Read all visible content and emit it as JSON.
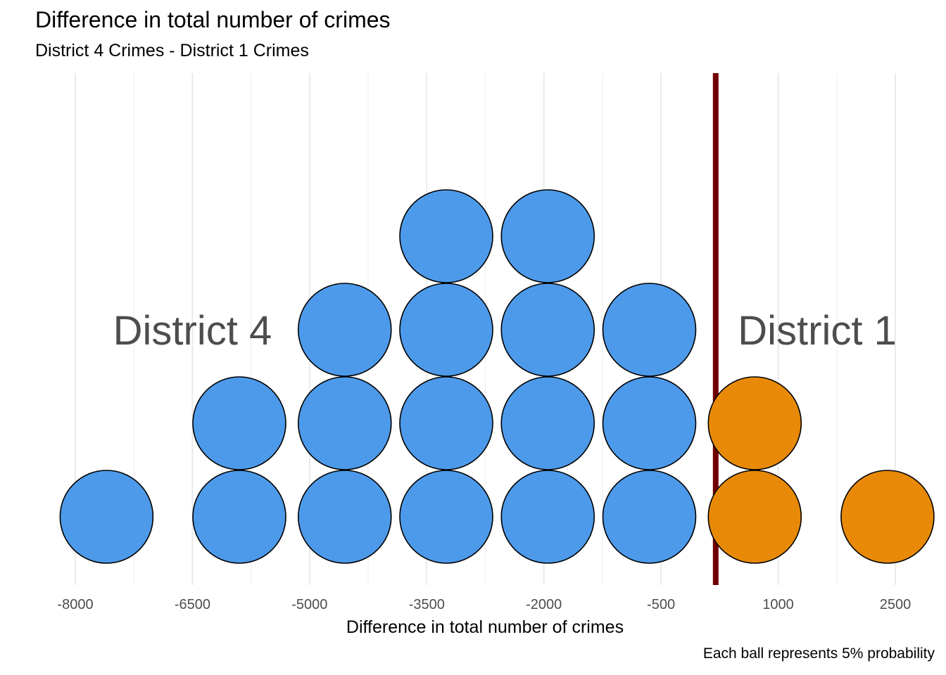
{
  "chart_data": {
    "type": "dotplot",
    "title": "Difference in total number of crimes",
    "subtitle": "District 4 Crimes - District 1 Crimes",
    "xlabel": "Difference in total number of crimes",
    "caption": "Each ball represents 5% probability",
    "xlim": [
      -8100,
      2800
    ],
    "x_ticks": [
      -8000,
      -6500,
      -5000,
      -3500,
      -2000,
      -500,
      1000,
      2500
    ],
    "x_tick_labels": [
      "-8000",
      "-6500",
      "-5000",
      "-3500",
      "-2000",
      "-500",
      "1000",
      "2500"
    ],
    "grid": "vertical",
    "reference_line": {
      "x": 200,
      "color": "#700000"
    },
    "region_labels": [
      {
        "text": "District 4",
        "x": -6500
      },
      {
        "text": "District 1",
        "x": 1500
      }
    ],
    "groups": [
      {
        "name": "District 4",
        "color": "#4e9aea"
      },
      {
        "name": "District 1",
        "color": "#e88a08"
      }
    ],
    "balls": [
      {
        "x": -7600,
        "stack": 0,
        "group": 0
      },
      {
        "x": -5900,
        "stack": 0,
        "group": 0
      },
      {
        "x": -5900,
        "stack": 1,
        "group": 0
      },
      {
        "x": -4550,
        "stack": 0,
        "group": 0
      },
      {
        "x": -4550,
        "stack": 1,
        "group": 0
      },
      {
        "x": -4550,
        "stack": 2,
        "group": 0
      },
      {
        "x": -3250,
        "stack": 0,
        "group": 0
      },
      {
        "x": -3250,
        "stack": 1,
        "group": 0
      },
      {
        "x": -3250,
        "stack": 2,
        "group": 0
      },
      {
        "x": -3250,
        "stack": 3,
        "group": 0
      },
      {
        "x": -1950,
        "stack": 0,
        "group": 0
      },
      {
        "x": -1950,
        "stack": 1,
        "group": 0
      },
      {
        "x": -1950,
        "stack": 2,
        "group": 0
      },
      {
        "x": -1950,
        "stack": 3,
        "group": 0
      },
      {
        "x": -650,
        "stack": 0,
        "group": 0
      },
      {
        "x": -650,
        "stack": 1,
        "group": 0
      },
      {
        "x": -650,
        "stack": 2,
        "group": 0
      },
      {
        "x": 700,
        "stack": 0,
        "group": 1
      },
      {
        "x": 700,
        "stack": 1,
        "group": 1
      },
      {
        "x": 2400,
        "stack": 0,
        "group": 1
      }
    ]
  }
}
